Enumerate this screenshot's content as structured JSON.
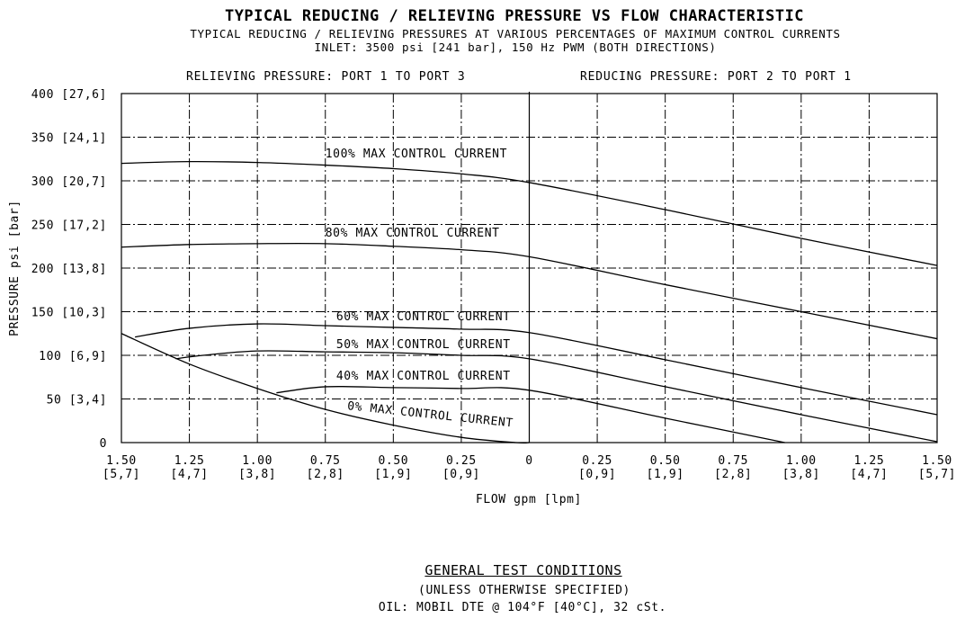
{
  "header": {
    "title": "TYPICAL REDUCING / RELIEVING PRESSURE VS FLOW CHARACTERISTIC",
    "subtitle_line1": "TYPICAL REDUCING / RELIEVING PRESSURES AT VARIOUS PERCENTAGES OF MAXIMUM CONTROL CURRENTS",
    "subtitle_line2": "INLET: 3500 psi [241 bar], 150 Hz PWM (BOTH DIRECTIONS)",
    "left_region_label": "RELIEVING PRESSURE: PORT 1 TO PORT 3",
    "right_region_label": "REDUCING PRESSURE: PORT 2 TO PORT 1"
  },
  "chart_data": {
    "type": "line",
    "title": "TYPICAL REDUCING / RELIEVING PRESSURE VS FLOW CHARACTERISTIC",
    "xlabel": "FLOW gpm [lpm]",
    "ylabel": "PRESSURE psi [bar]",
    "xlim": [
      -1.5,
      1.5
    ],
    "ylim": [
      0,
      400
    ],
    "grid": true,
    "x_ticks": [
      {
        "value": -1.5,
        "label": "1.50",
        "sublabel": "[5,7]"
      },
      {
        "value": -1.25,
        "label": "1.25",
        "sublabel": "[4,7]"
      },
      {
        "value": -1.0,
        "label": "1.00",
        "sublabel": "[3,8]"
      },
      {
        "value": -0.75,
        "label": "0.75",
        "sublabel": "[2,8]"
      },
      {
        "value": -0.5,
        "label": "0.50",
        "sublabel": "[1,9]"
      },
      {
        "value": -0.25,
        "label": "0.25",
        "sublabel": "[0,9]"
      },
      {
        "value": 0,
        "label": "0",
        "sublabel": ""
      },
      {
        "value": 0.25,
        "label": "0.25",
        "sublabel": "[0,9]"
      },
      {
        "value": 0.5,
        "label": "0.50",
        "sublabel": "[1,9]"
      },
      {
        "value": 0.75,
        "label": "0.75",
        "sublabel": "[2,8]"
      },
      {
        "value": 1.0,
        "label": "1.00",
        "sublabel": "[3,8]"
      },
      {
        "value": 1.25,
        "label": "1.25",
        "sublabel": "[4,7]"
      },
      {
        "value": 1.5,
        "label": "1.50",
        "sublabel": "[5,7]"
      }
    ],
    "y_ticks": [
      {
        "value": 0,
        "label": "0"
      },
      {
        "value": 50,
        "label": "50 [3,4]"
      },
      {
        "value": 100,
        "label": "100 [6,9]"
      },
      {
        "value": 150,
        "label": "150 [10,3]"
      },
      {
        "value": 200,
        "label": "200 [13,8]"
      },
      {
        "value": 250,
        "label": "250 [17,2]"
      },
      {
        "value": 300,
        "label": "300 [20,7]"
      },
      {
        "value": 350,
        "label": "350 [24,1]"
      },
      {
        "value": 400,
        "label": "400 [27,6]"
      }
    ],
    "series": [
      {
        "name": "100% MAX CONTROL CURRENT",
        "label_at": [
          -0.75,
          327
        ],
        "label_angle": 0,
        "points": [
          [
            -1.5,
            320
          ],
          [
            -1.25,
            322
          ],
          [
            -1.0,
            321
          ],
          [
            -0.75,
            318
          ],
          [
            -0.5,
            314
          ],
          [
            -0.25,
            308
          ],
          [
            0,
            298
          ],
          [
            0.5,
            267
          ],
          [
            1.0,
            234
          ],
          [
            1.5,
            203
          ]
        ]
      },
      {
        "name": "80% MAX CONTROL CURRENT",
        "label_at": [
          -0.75,
          236
        ],
        "label_angle": 0,
        "points": [
          [
            -1.5,
            224
          ],
          [
            -1.25,
            227
          ],
          [
            -1.0,
            228
          ],
          [
            -0.75,
            228
          ],
          [
            -0.5,
            225
          ],
          [
            -0.25,
            221
          ],
          [
            0,
            213
          ],
          [
            0.5,
            181
          ],
          [
            1.0,
            150
          ],
          [
            1.5,
            119
          ]
        ]
      },
      {
        "name": "60% MAX CONTROL CURRENT",
        "label_at": [
          -0.71,
          140
        ],
        "label_angle": 0,
        "points": [
          [
            -1.45,
            121
          ],
          [
            -1.25,
            131
          ],
          [
            -1.0,
            136
          ],
          [
            -0.75,
            134
          ],
          [
            -0.5,
            132
          ],
          [
            -0.25,
            130
          ],
          [
            0,
            126
          ],
          [
            0.5,
            95
          ],
          [
            1.0,
            63
          ],
          [
            1.5,
            32
          ]
        ]
      },
      {
        "name": "50% MAX CONTROL CURRENT",
        "label_at": [
          -0.71,
          108
        ],
        "label_angle": 0,
        "points": [
          [
            -1.3,
            96
          ],
          [
            -1.2,
            100
          ],
          [
            -1.0,
            105
          ],
          [
            -0.75,
            104
          ],
          [
            -0.5,
            103
          ],
          [
            -0.25,
            100
          ],
          [
            0,
            96
          ],
          [
            0.5,
            64
          ],
          [
            1.0,
            32
          ],
          [
            1.5,
            1
          ]
        ]
      },
      {
        "name": "40% MAX CONTROL CURRENT",
        "label_at": [
          -0.71,
          72
        ],
        "label_angle": 0,
        "points": [
          [
            -0.93,
            57
          ],
          [
            -0.75,
            64
          ],
          [
            -0.5,
            63
          ],
          [
            -0.25,
            62
          ],
          [
            0,
            60
          ],
          [
            0.5,
            28
          ],
          [
            0.94,
            0
          ]
        ]
      },
      {
        "name": "0% MAX CONTROL CURRENT",
        "label_at": [
          -0.67,
          38
        ],
        "label_angle": 6,
        "points": [
          [
            -1.5,
            125
          ],
          [
            -1.25,
            90
          ],
          [
            -1.0,
            62
          ],
          [
            -0.75,
            38
          ],
          [
            -0.5,
            20
          ],
          [
            -0.25,
            6
          ],
          [
            -0.05,
            0
          ],
          [
            0,
            0
          ]
        ]
      }
    ]
  },
  "test_conditions": {
    "title": "GENERAL TEST CONDITIONS",
    "subtitle": "(UNLESS OTHERWISE SPECIFIED)",
    "oil": "OIL: MOBIL DTE @ 104°F [40°C], 32 cSt."
  }
}
